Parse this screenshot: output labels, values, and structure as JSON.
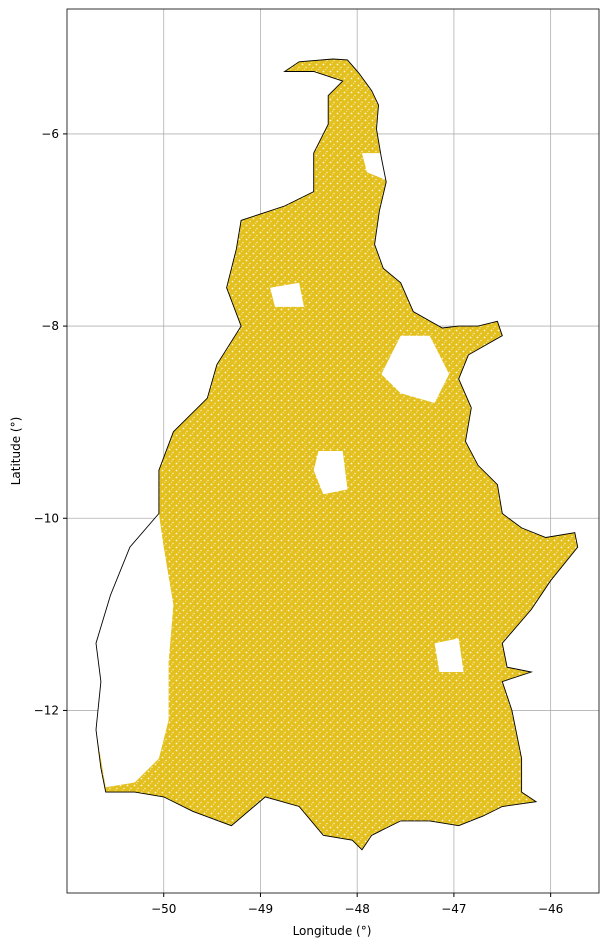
{
  "chart_data": {
    "type": "map",
    "xlabel": "Longitude (°)",
    "ylabel": "Latitude (°)",
    "xlim": [
      -51.0,
      -45.5
    ],
    "ylim": [
      -13.9,
      -4.7
    ],
    "x_ticks": [
      -50,
      -49,
      -48,
      -47,
      -46
    ],
    "y_ticks": [
      -6,
      -8,
      -10,
      -12
    ],
    "x_tick_labels": [
      "−50",
      "−49",
      "−48",
      "−47",
      "−46"
    ],
    "y_tick_labels": [
      "−6",
      "−8",
      "−10",
      "−12"
    ],
    "grid": true,
    "fill_color": "#e3c01e",
    "outline_color": "#000000",
    "outline": [
      [
        -48.25,
        -5.22
      ],
      [
        -48.1,
        -5.23
      ],
      [
        -47.98,
        -5.37
      ],
      [
        -47.85,
        -5.55
      ],
      [
        -47.78,
        -5.7
      ],
      [
        -47.8,
        -5.95
      ],
      [
        -47.75,
        -6.25
      ],
      [
        -47.7,
        -6.5
      ],
      [
        -47.77,
        -6.8
      ],
      [
        -47.82,
        -7.15
      ],
      [
        -47.73,
        -7.4
      ],
      [
        -47.55,
        -7.55
      ],
      [
        -47.42,
        -7.85
      ],
      [
        -47.12,
        -8.02
      ],
      [
        -46.95,
        -8.0
      ],
      [
        -46.75,
        -8.0
      ],
      [
        -46.55,
        -7.95
      ],
      [
        -46.5,
        -8.1
      ],
      [
        -46.85,
        -8.3
      ],
      [
        -46.95,
        -8.55
      ],
      [
        -46.82,
        -8.85
      ],
      [
        -46.88,
        -9.2
      ],
      [
        -46.75,
        -9.45
      ],
      [
        -46.55,
        -9.65
      ],
      [
        -46.5,
        -9.95
      ],
      [
        -46.3,
        -10.1
      ],
      [
        -46.05,
        -10.2
      ],
      [
        -45.75,
        -10.15
      ],
      [
        -45.72,
        -10.3
      ],
      [
        -46.0,
        -10.65
      ],
      [
        -46.2,
        -10.95
      ],
      [
        -46.5,
        -11.3
      ],
      [
        -46.45,
        -11.55
      ],
      [
        -46.2,
        -11.6
      ],
      [
        -46.5,
        -11.7
      ],
      [
        -46.4,
        -12.0
      ],
      [
        -46.3,
        -12.5
      ],
      [
        -46.3,
        -12.85
      ],
      [
        -46.15,
        -12.95
      ],
      [
        -46.5,
        -13.0
      ],
      [
        -46.7,
        -13.1
      ],
      [
        -46.95,
        -13.2
      ],
      [
        -47.25,
        -13.15
      ],
      [
        -47.55,
        -13.15
      ],
      [
        -47.85,
        -13.3
      ],
      [
        -47.95,
        -13.45
      ],
      [
        -48.05,
        -13.35
      ],
      [
        -48.35,
        -13.3
      ],
      [
        -48.6,
        -13.0
      ],
      [
        -48.95,
        -12.9
      ],
      [
        -49.3,
        -13.2
      ],
      [
        -49.7,
        -13.05
      ],
      [
        -50.0,
        -12.9
      ],
      [
        -50.3,
        -12.85
      ],
      [
        -50.6,
        -12.85
      ],
      [
        -50.65,
        -12.6
      ],
      [
        -50.7,
        -12.2
      ],
      [
        -50.65,
        -11.7
      ],
      [
        -50.7,
        -11.3
      ],
      [
        -50.55,
        -10.8
      ],
      [
        -50.35,
        -10.3
      ],
      [
        -50.05,
        -9.95
      ],
      [
        -50.05,
        -9.5
      ],
      [
        -49.9,
        -9.1
      ],
      [
        -49.55,
        -8.75
      ],
      [
        -49.45,
        -8.4
      ],
      [
        -49.2,
        -8.0
      ],
      [
        -49.35,
        -7.6
      ],
      [
        -49.25,
        -7.2
      ],
      [
        -49.2,
        -6.9
      ],
      [
        -48.75,
        -6.75
      ],
      [
        -48.45,
        -6.6
      ],
      [
        -48.45,
        -6.2
      ],
      [
        -48.3,
        -5.9
      ],
      [
        -48.3,
        -5.6
      ],
      [
        -48.15,
        -5.45
      ],
      [
        -48.45,
        -5.35
      ],
      [
        -48.75,
        -5.35
      ],
      [
        -48.6,
        -5.25
      ],
      [
        -48.25,
        -5.22
      ]
    ],
    "unfilled_regions": [
      [
        [
          -50.6,
          -12.8
        ],
        [
          -50.7,
          -12.2
        ],
        [
          -50.65,
          -11.7
        ],
        [
          -50.7,
          -11.3
        ],
        [
          -50.55,
          -10.8
        ],
        [
          -50.35,
          -10.3
        ],
        [
          -50.05,
          -9.95
        ],
        [
          -50.0,
          -10.3
        ],
        [
          -49.9,
          -10.9
        ],
        [
          -49.95,
          -11.5
        ],
        [
          -49.95,
          -12.1
        ],
        [
          -50.05,
          -12.5
        ],
        [
          -50.3,
          -12.75
        ]
      ],
      [
        [
          -47.55,
          -8.1
        ],
        [
          -47.25,
          -8.1
        ],
        [
          -47.05,
          -8.5
        ],
        [
          -47.2,
          -8.8
        ],
        [
          -47.55,
          -8.7
        ],
        [
          -47.75,
          -8.5
        ]
      ],
      [
        [
          -48.4,
          -9.3
        ],
        [
          -48.15,
          -9.3
        ],
        [
          -48.1,
          -9.7
        ],
        [
          -48.35,
          -9.75
        ],
        [
          -48.45,
          -9.5
        ]
      ],
      [
        [
          -47.95,
          -6.2
        ],
        [
          -47.65,
          -6.2
        ],
        [
          -47.65,
          -6.5
        ],
        [
          -47.9,
          -6.4
        ]
      ],
      [
        [
          -48.9,
          -7.6
        ],
        [
          -48.6,
          -7.55
        ],
        [
          -48.55,
          -7.8
        ],
        [
          -48.85,
          -7.8
        ]
      ],
      [
        [
          -47.2,
          -11.3
        ],
        [
          -46.95,
          -11.25
        ],
        [
          -46.9,
          -11.6
        ],
        [
          -47.15,
          -11.6
        ]
      ]
    ]
  }
}
